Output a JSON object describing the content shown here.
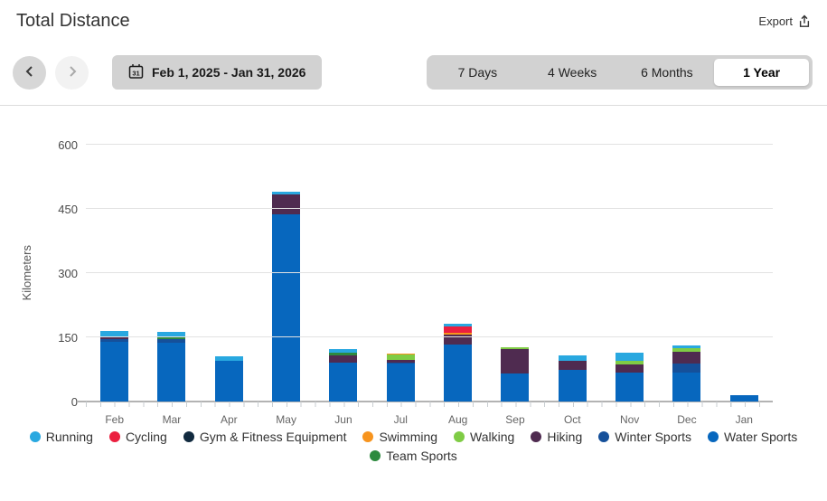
{
  "header": {
    "title": "Total Distance",
    "export_label": "Export"
  },
  "controls": {
    "date_range": "Feb 1, 2025 - Jan 31, 2026",
    "calendar_day": "31",
    "tabs": [
      {
        "label": "7 Days",
        "active": false
      },
      {
        "label": "4 Weeks",
        "active": false
      },
      {
        "label": "6 Months",
        "active": false
      },
      {
        "label": "1 Year",
        "active": true
      }
    ]
  },
  "chart_data": {
    "type": "bar",
    "variant": "stacked",
    "title": "Total Distance",
    "xlabel": "",
    "ylabel": "Kilometers",
    "ylim": [
      0,
      600
    ],
    "yticks": [
      0,
      150,
      300,
      450,
      600
    ],
    "grid": true,
    "legend_position": "bottom",
    "categories": [
      "Feb",
      "Mar",
      "Apr",
      "May",
      "Jun",
      "Jul",
      "Aug",
      "Sep",
      "Oct",
      "Nov",
      "Dec",
      "Jan"
    ],
    "legend": [
      {
        "name": "Running",
        "color": "#29A8E0"
      },
      {
        "name": "Cycling",
        "color": "#EB1F3F"
      },
      {
        "name": "Gym & Fitness Equipment",
        "color": "#112A3F"
      },
      {
        "name": "Swimming",
        "color": "#F7941E"
      },
      {
        "name": "Walking",
        "color": "#7FCC45"
      },
      {
        "name": "Hiking",
        "color": "#4F2B50"
      },
      {
        "name": "Winter Sports",
        "color": "#15509A"
      },
      {
        "name": "Water Sports",
        "color": "#0767BE"
      },
      {
        "name": "Team Sports",
        "color": "#2D8A3E"
      }
    ],
    "bars": [
      {
        "month": "Feb",
        "total": 164,
        "segments": [
          {
            "activity": "Water Sports",
            "km": 140
          },
          {
            "activity": "Winter Sports",
            "km": 5
          },
          {
            "activity": "Hiking",
            "km": 7
          },
          {
            "activity": "Running",
            "km": 12
          }
        ]
      },
      {
        "month": "Mar",
        "total": 162,
        "segments": [
          {
            "activity": "Water Sports",
            "km": 138
          },
          {
            "activity": "Winter Sports",
            "km": 7
          },
          {
            "activity": "Team Sports",
            "km": 7
          },
          {
            "activity": "Running",
            "km": 10
          }
        ]
      },
      {
        "month": "Apr",
        "total": 105,
        "segments": [
          {
            "activity": "Water Sports",
            "km": 96
          },
          {
            "activity": "Running",
            "km": 9
          }
        ]
      },
      {
        "month": "May",
        "total": 490,
        "segments": [
          {
            "activity": "Water Sports",
            "km": 437
          },
          {
            "activity": "Hiking",
            "km": 46
          },
          {
            "activity": "Running",
            "km": 7
          }
        ]
      },
      {
        "month": "Jun",
        "total": 122,
        "segments": [
          {
            "activity": "Water Sports",
            "km": 92
          },
          {
            "activity": "Hiking",
            "km": 15
          },
          {
            "activity": "Team Sports",
            "km": 7
          },
          {
            "activity": "Running",
            "km": 8
          }
        ]
      },
      {
        "month": "Jul",
        "total": 113,
        "segments": [
          {
            "activity": "Water Sports",
            "km": 88
          },
          {
            "activity": "Winter Sports",
            "km": 3
          },
          {
            "activity": "Hiking",
            "km": 6
          },
          {
            "activity": "Walking",
            "km": 12
          },
          {
            "activity": "Swimming",
            "km": 4
          }
        ]
      },
      {
        "month": "Aug",
        "total": 181,
        "segments": [
          {
            "activity": "Water Sports",
            "km": 133
          },
          {
            "activity": "Hiking",
            "km": 23
          },
          {
            "activity": "Swimming",
            "km": 4
          },
          {
            "activity": "Cycling",
            "km": 15
          },
          {
            "activity": "Running",
            "km": 6
          }
        ]
      },
      {
        "month": "Sep",
        "total": 126,
        "segments": [
          {
            "activity": "Water Sports",
            "km": 65
          },
          {
            "activity": "Hiking",
            "km": 57
          },
          {
            "activity": "Walking",
            "km": 4
          }
        ]
      },
      {
        "month": "Oct",
        "total": 107,
        "segments": [
          {
            "activity": "Water Sports",
            "km": 74
          },
          {
            "activity": "Hiking",
            "km": 22
          },
          {
            "activity": "Running",
            "km": 11
          }
        ]
      },
      {
        "month": "Nov",
        "total": 115,
        "segments": [
          {
            "activity": "Water Sports",
            "km": 67
          },
          {
            "activity": "Hiking",
            "km": 19
          },
          {
            "activity": "Walking",
            "km": 10
          },
          {
            "activity": "Running",
            "km": 19
          }
        ]
      },
      {
        "month": "Dec",
        "total": 131,
        "segments": [
          {
            "activity": "Water Sports",
            "km": 68
          },
          {
            "activity": "Winter Sports",
            "km": 21
          },
          {
            "activity": "Hiking",
            "km": 27
          },
          {
            "activity": "Walking",
            "km": 9
          },
          {
            "activity": "Running",
            "km": 6
          }
        ]
      },
      {
        "month": "Jan",
        "total": 15,
        "segments": [
          {
            "activity": "Water Sports",
            "km": 15
          }
        ]
      }
    ]
  }
}
